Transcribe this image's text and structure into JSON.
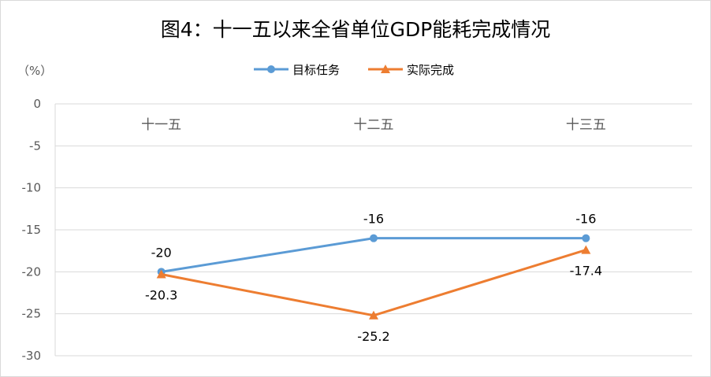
{
  "chart_data": {
    "type": "line",
    "title": "图4：十一五以来全省单位GDP能耗完成情况",
    "ylabel": "（%）",
    "xlabel": "",
    "categories": [
      "十一五",
      "十二五",
      "十三五"
    ],
    "ylim": [
      -30,
      0
    ],
    "yticks": [
      0,
      -5,
      -10,
      -15,
      -20,
      -25,
      -30
    ],
    "grid": true,
    "legend_position": "top-center",
    "series": [
      {
        "name": "目标任务",
        "values": [
          -20,
          -16,
          -16
        ],
        "color": "#5b9bd5",
        "marker": "circle",
        "label_position": "above"
      },
      {
        "name": "实际完成",
        "values": [
          -20.3,
          -25.2,
          -17.4
        ],
        "color": "#ed7d31",
        "marker": "triangle",
        "label_position": "below"
      }
    ]
  }
}
